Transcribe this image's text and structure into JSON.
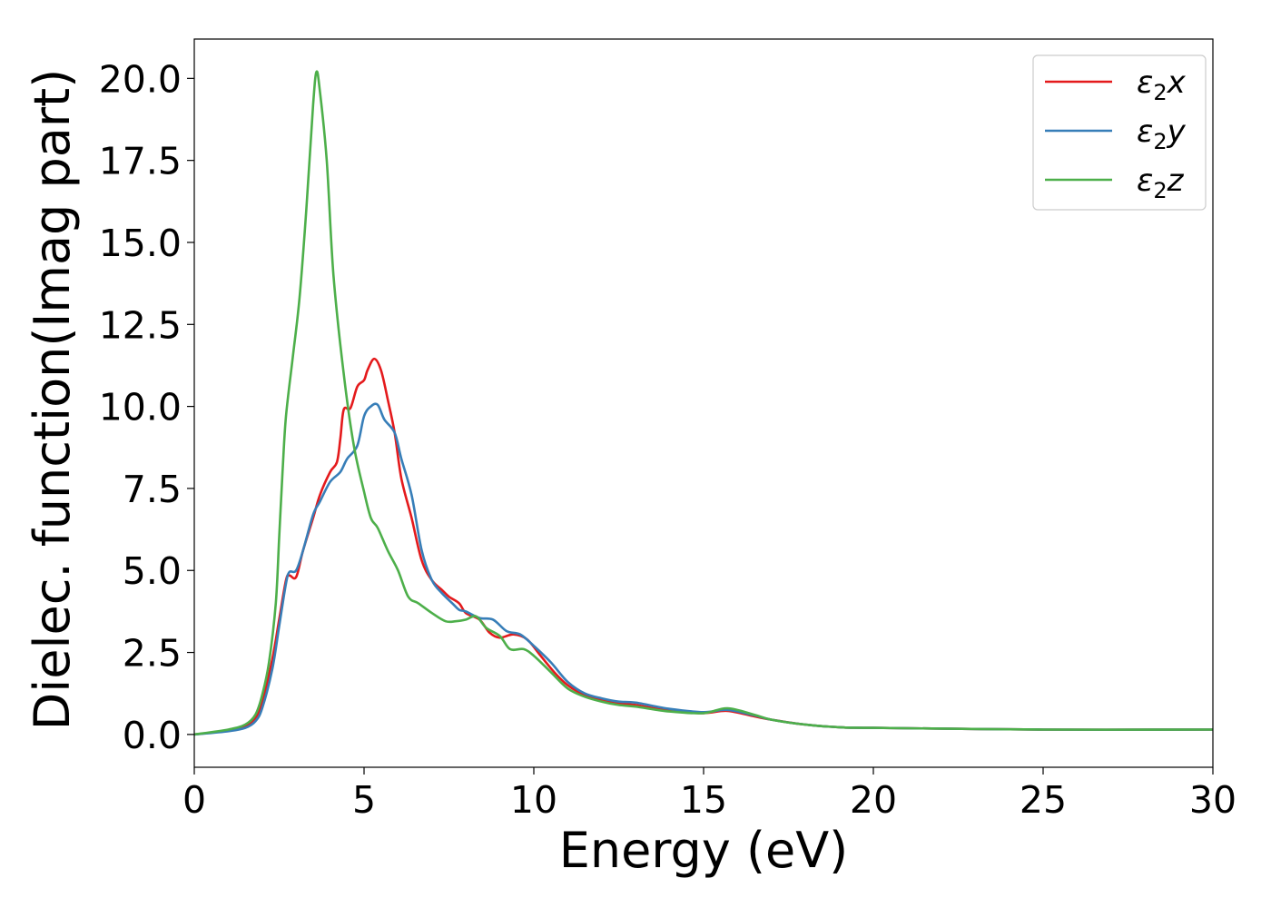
{
  "chart_data": {
    "type": "line",
    "xlabel": "Energy (eV)",
    "ylabel": "Dielec. function(Imag part)",
    "xlim": [
      0,
      30
    ],
    "ylim": [
      -1.0,
      21.2
    ],
    "x_ticks": [
      "0",
      "5",
      "10",
      "15",
      "20",
      "25",
      "30"
    ],
    "y_ticks": [
      "0.0",
      "2.5",
      "5.0",
      "7.5",
      "10.0",
      "12.5",
      "15.0",
      "17.5",
      "20.0"
    ],
    "grid": false,
    "legend_position": "top-right",
    "series": [
      {
        "name": "ε2x",
        "legend": {
          "base": "ε",
          "sub": "2",
          "comp": "x"
        },
        "color": "#e41a1c",
        "points": [
          [
            0,
            0.0
          ],
          [
            1,
            0.12
          ],
          [
            1.5,
            0.25
          ],
          [
            1.8,
            0.5
          ],
          [
            2.0,
            1.0
          ],
          [
            2.3,
            2.3
          ],
          [
            2.5,
            3.5
          ],
          [
            2.7,
            4.7
          ],
          [
            2.8,
            4.85
          ],
          [
            3.0,
            4.8
          ],
          [
            3.2,
            5.6
          ],
          [
            3.5,
            6.6
          ],
          [
            3.7,
            7.3
          ],
          [
            4.0,
            8.0
          ],
          [
            4.2,
            8.3
          ],
          [
            4.3,
            9.0
          ],
          [
            4.4,
            9.9
          ],
          [
            4.6,
            9.95
          ],
          [
            4.8,
            10.6
          ],
          [
            5.0,
            10.8
          ],
          [
            5.1,
            11.1
          ],
          [
            5.3,
            11.45
          ],
          [
            5.5,
            11.1
          ],
          [
            5.7,
            10.2
          ],
          [
            5.9,
            9.2
          ],
          [
            6.1,
            7.8
          ],
          [
            6.4,
            6.6
          ],
          [
            6.7,
            5.3
          ],
          [
            7.0,
            4.7
          ],
          [
            7.3,
            4.4
          ],
          [
            7.5,
            4.2
          ],
          [
            7.8,
            4.0
          ],
          [
            8.0,
            3.7
          ],
          [
            8.4,
            3.5
          ],
          [
            8.7,
            3.1
          ],
          [
            9.0,
            2.95
          ],
          [
            9.4,
            3.05
          ],
          [
            9.8,
            2.9
          ],
          [
            10.2,
            2.4
          ],
          [
            10.6,
            1.9
          ],
          [
            11.0,
            1.5
          ],
          [
            11.5,
            1.2
          ],
          [
            12.0,
            1.05
          ],
          [
            12.5,
            0.95
          ],
          [
            13.0,
            0.9
          ],
          [
            14.0,
            0.72
          ],
          [
            15.0,
            0.65
          ],
          [
            15.7,
            0.72
          ],
          [
            16.5,
            0.55
          ],
          [
            17.0,
            0.45
          ],
          [
            18.0,
            0.3
          ],
          [
            19.0,
            0.22
          ],
          [
            20.0,
            0.2
          ],
          [
            25.0,
            0.15
          ],
          [
            30.0,
            0.15
          ]
        ]
      },
      {
        "name": "ε2y",
        "legend": {
          "base": "ε",
          "sub": "2",
          "comp": "y"
        },
        "color": "#377eb8",
        "points": [
          [
            0,
            0.0
          ],
          [
            1,
            0.1
          ],
          [
            1.5,
            0.2
          ],
          [
            1.8,
            0.4
          ],
          [
            2.0,
            0.8
          ],
          [
            2.3,
            2.0
          ],
          [
            2.5,
            3.3
          ],
          [
            2.7,
            4.6
          ],
          [
            2.8,
            4.95
          ],
          [
            3.0,
            5.0
          ],
          [
            3.2,
            5.6
          ],
          [
            3.5,
            6.7
          ],
          [
            3.7,
            7.1
          ],
          [
            4.0,
            7.7
          ],
          [
            4.3,
            8.0
          ],
          [
            4.5,
            8.4
          ],
          [
            4.8,
            8.8
          ],
          [
            5.0,
            9.7
          ],
          [
            5.2,
            10.0
          ],
          [
            5.4,
            10.05
          ],
          [
            5.6,
            9.6
          ],
          [
            5.9,
            9.2
          ],
          [
            6.1,
            8.4
          ],
          [
            6.4,
            7.3
          ],
          [
            6.7,
            5.6
          ],
          [
            7.0,
            4.7
          ],
          [
            7.3,
            4.3
          ],
          [
            7.6,
            4.0
          ],
          [
            7.8,
            3.8
          ],
          [
            8.0,
            3.75
          ],
          [
            8.4,
            3.55
          ],
          [
            8.8,
            3.5
          ],
          [
            9.2,
            3.15
          ],
          [
            9.6,
            3.05
          ],
          [
            10.0,
            2.7
          ],
          [
            10.5,
            2.2
          ],
          [
            11.0,
            1.6
          ],
          [
            11.5,
            1.25
          ],
          [
            12.0,
            1.1
          ],
          [
            12.5,
            1.0
          ],
          [
            13.0,
            0.97
          ],
          [
            14.0,
            0.78
          ],
          [
            15.0,
            0.68
          ],
          [
            15.7,
            0.75
          ],
          [
            16.5,
            0.58
          ],
          [
            17.0,
            0.45
          ],
          [
            18.0,
            0.3
          ],
          [
            19.0,
            0.22
          ],
          [
            20.0,
            0.2
          ],
          [
            25.0,
            0.15
          ],
          [
            30.0,
            0.15
          ]
        ]
      },
      {
        "name": "ε2z",
        "legend": {
          "base": "ε",
          "sub": "2",
          "comp": "z"
        },
        "color": "#4daf4a",
        "points": [
          [
            0,
            0.0
          ],
          [
            1,
            0.15
          ],
          [
            1.5,
            0.3
          ],
          [
            1.8,
            0.6
          ],
          [
            2.0,
            1.2
          ],
          [
            2.2,
            2.2
          ],
          [
            2.4,
            4.0
          ],
          [
            2.5,
            6.0
          ],
          [
            2.6,
            8.0
          ],
          [
            2.7,
            9.7
          ],
          [
            2.9,
            11.5
          ],
          [
            3.1,
            13.3
          ],
          [
            3.3,
            16.0
          ],
          [
            3.5,
            19.2
          ],
          [
            3.6,
            20.2
          ],
          [
            3.7,
            19.6
          ],
          [
            3.9,
            17.5
          ],
          [
            4.1,
            14.0
          ],
          [
            4.4,
            11.0
          ],
          [
            4.7,
            8.8
          ],
          [
            5.0,
            7.4
          ],
          [
            5.2,
            6.6
          ],
          [
            5.4,
            6.3
          ],
          [
            5.7,
            5.6
          ],
          [
            6.0,
            5.0
          ],
          [
            6.3,
            4.2
          ],
          [
            6.6,
            4.0
          ],
          [
            7.0,
            3.7
          ],
          [
            7.4,
            3.45
          ],
          [
            7.7,
            3.45
          ],
          [
            8.0,
            3.5
          ],
          [
            8.3,
            3.6
          ],
          [
            8.6,
            3.25
          ],
          [
            9.0,
            3.0
          ],
          [
            9.3,
            2.6
          ],
          [
            9.7,
            2.6
          ],
          [
            10.0,
            2.4
          ],
          [
            10.5,
            1.9
          ],
          [
            11.0,
            1.4
          ],
          [
            11.5,
            1.15
          ],
          [
            12.0,
            1.0
          ],
          [
            12.5,
            0.9
          ],
          [
            13.0,
            0.85
          ],
          [
            14.0,
            0.7
          ],
          [
            15.0,
            0.65
          ],
          [
            15.7,
            0.8
          ],
          [
            16.5,
            0.6
          ],
          [
            17.0,
            0.45
          ],
          [
            18.0,
            0.3
          ],
          [
            19.0,
            0.22
          ],
          [
            20.0,
            0.2
          ],
          [
            25.0,
            0.15
          ],
          [
            30.0,
            0.15
          ]
        ]
      }
    ]
  }
}
